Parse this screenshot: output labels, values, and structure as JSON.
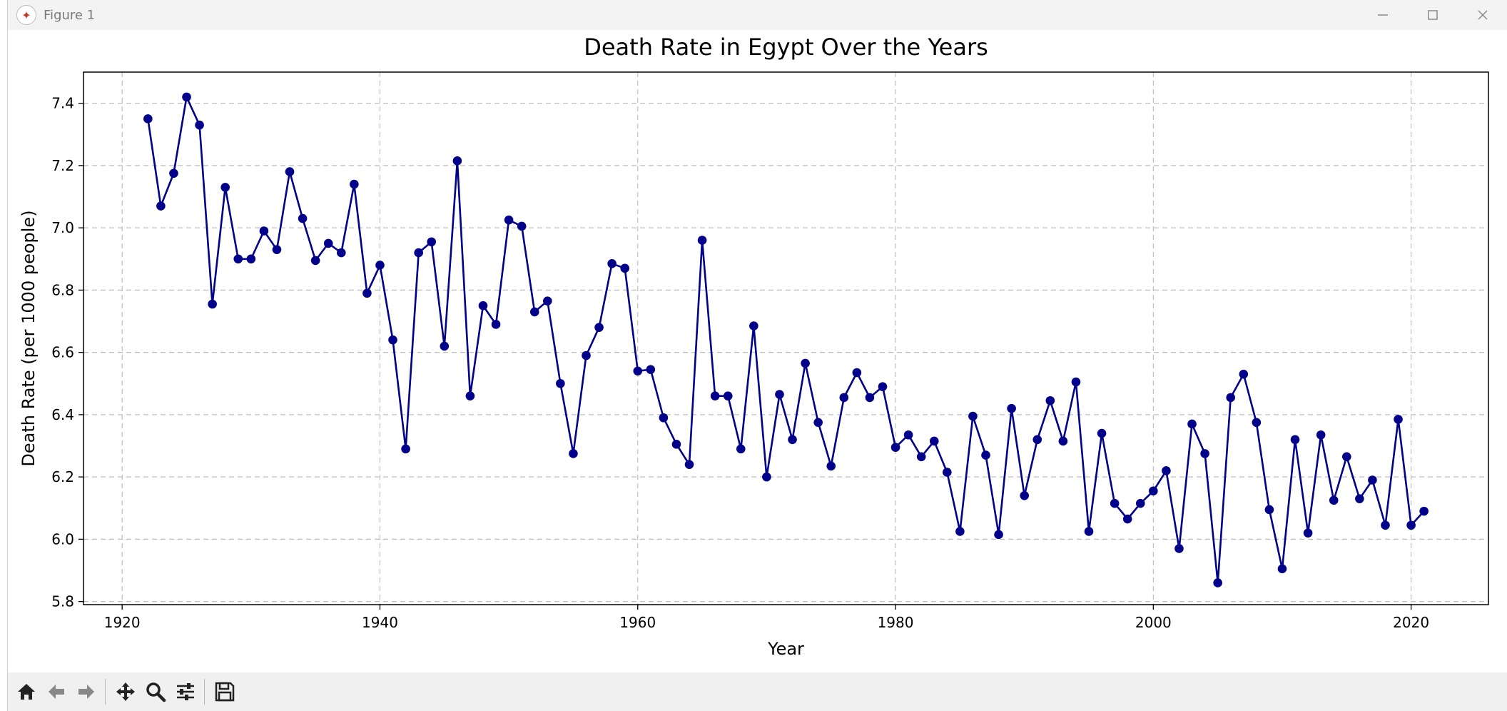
{
  "window": {
    "title": "Figure 1"
  },
  "toolbar": {
    "icons": [
      "home-icon",
      "back-icon",
      "forward-icon",
      "pan-icon",
      "zoom-icon",
      "configure-icon",
      "save-icon"
    ]
  },
  "colors": {
    "line": "#00008b",
    "grid": "#bfbfbf",
    "titlebar": "#f3f3f3",
    "toolbar": "#f0f0f0"
  },
  "chart_data": {
    "type": "line",
    "title": "Death Rate in Egypt Over the Years",
    "xlabel": "Year",
    "ylabel": "Death Rate (per 1000 people)",
    "xlim": [
      1917,
      2026
    ],
    "ylim": [
      5.79,
      7.5
    ],
    "xticks": [
      1920,
      1940,
      1960,
      1980,
      2000,
      2020
    ],
    "yticks": [
      5.8,
      6.0,
      6.2,
      6.4,
      6.6,
      6.8,
      7.0,
      7.2,
      7.4
    ],
    "grid": true,
    "marker": "circle",
    "x": [
      1922,
      1923,
      1924,
      1925,
      1926,
      1927,
      1928,
      1929,
      1930,
      1931,
      1932,
      1933,
      1934,
      1935,
      1936,
      1937,
      1938,
      1939,
      1940,
      1941,
      1942,
      1943,
      1944,
      1945,
      1946,
      1947,
      1948,
      1949,
      1950,
      1951,
      1952,
      1953,
      1954,
      1955,
      1956,
      1957,
      1958,
      1959,
      1960,
      1961,
      1962,
      1963,
      1964,
      1965,
      1966,
      1967,
      1968,
      1969,
      1970,
      1971,
      1972,
      1973,
      1974,
      1975,
      1976,
      1977,
      1978,
      1979,
      1980,
      1981,
      1982,
      1983,
      1984,
      1985,
      1986,
      1987,
      1988,
      1989,
      1990,
      1991,
      1992,
      1993,
      1994,
      1995,
      1996,
      1997,
      1998,
      1999,
      2000,
      2001,
      2002,
      2003,
      2004,
      2005,
      2006,
      2007,
      2008,
      2009,
      2010,
      2011,
      2012,
      2013,
      2014,
      2015,
      2016,
      2017,
      2018,
      2019,
      2020,
      2021
    ],
    "y": [
      7.35,
      7.07,
      7.175,
      7.42,
      7.33,
      6.755,
      7.13,
      6.9,
      6.9,
      6.99,
      6.93,
      7.18,
      7.03,
      6.895,
      6.95,
      6.92,
      7.14,
      6.79,
      6.88,
      6.64,
      6.29,
      6.92,
      6.955,
      6.62,
      7.215,
      6.46,
      6.75,
      6.69,
      7.025,
      7.005,
      6.73,
      6.765,
      6.5,
      6.275,
      6.59,
      6.68,
      6.885,
      6.87,
      6.54,
      6.545,
      6.39,
      6.305,
      6.24,
      6.96,
      6.46,
      6.46,
      6.29,
      6.685,
      6.2,
      6.465,
      6.32,
      6.565,
      6.375,
      6.235,
      6.455,
      6.535,
      6.455,
      6.49,
      6.295,
      6.335,
      6.265,
      6.315,
      6.215,
      6.025,
      6.395,
      6.27,
      6.015,
      6.42,
      6.14,
      6.32,
      6.445,
      6.315,
      6.505,
      6.025,
      6.34,
      6.115,
      6.065,
      6.115,
      6.155,
      6.22,
      5.97,
      6.37,
      6.275,
      5.86,
      6.455,
      6.53,
      6.375,
      6.095,
      5.905,
      6.32,
      6.02,
      6.335,
      6.125,
      6.265,
      6.13,
      6.19,
      6.045,
      6.385,
      6.045,
      6.09
    ]
  }
}
